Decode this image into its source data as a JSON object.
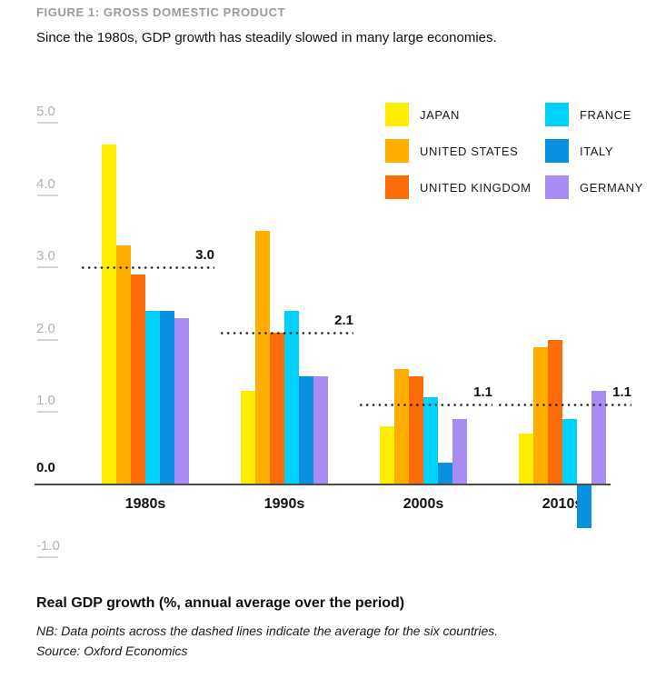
{
  "figure": {
    "kicker": "FIGURE 1: GROSS DOMESTIC PRODUCT",
    "subtitle": "Since the 1980s, GDP growth has steadily slowed in many large economies.",
    "footer_title": "Real GDP growth (%, annual average over the period)",
    "note": "NB: Data points across the dashed lines indicate the average for the six countries.",
    "source": "Source: Oxford Economics"
  },
  "chart_data": {
    "type": "bar",
    "title": "FIGURE 1: GROSS DOMESTIC PRODUCT",
    "subtitle": "Since the 1980s, GDP growth has steadily slowed in many large economies.",
    "ylabel": "Real GDP growth (%, annual average over the period)",
    "xlabel": "",
    "categories": [
      "1980s",
      "1990s",
      "2000s",
      "2010s"
    ],
    "series": [
      {
        "name": "JAPAN",
        "color": "#FFED00",
        "values": [
          4.7,
          1.3,
          0.8,
          0.7
        ]
      },
      {
        "name": "UNITED STATES",
        "color": "#FFAE00",
        "values": [
          3.3,
          3.5,
          1.6,
          1.9
        ]
      },
      {
        "name": "UNITED KINGDOM",
        "color": "#FB6B07",
        "values": [
          2.9,
          2.1,
          1.5,
          2.0
        ]
      },
      {
        "name": "FRANCE",
        "color": "#00D2FC",
        "values": [
          2.4,
          2.4,
          1.2,
          0.9
        ]
      },
      {
        "name": "ITALY",
        "color": "#0A90E0",
        "values": [
          2.4,
          1.5,
          0.3,
          -0.6
        ]
      },
      {
        "name": "GERMANY",
        "color": "#A98BF4",
        "values": [
          2.3,
          1.5,
          0.9,
          1.3
        ]
      }
    ],
    "averages": [
      {
        "category": "1980s",
        "value": 3.0,
        "label": "3.0"
      },
      {
        "category": "1990s",
        "value": 2.1,
        "label": "2.1"
      },
      {
        "category": "2000s",
        "value": 1.1,
        "label": "1.1"
      },
      {
        "category": "2010s",
        "value": 1.1,
        "label": "1.1"
      }
    ],
    "y_ticks": [
      {
        "label": "5.0",
        "value": 5.0
      },
      {
        "label": "4.0",
        "value": 4.0
      },
      {
        "label": "3.0",
        "value": 3.0
      },
      {
        "label": "2.0",
        "value": 2.0
      },
      {
        "label": "1.0",
        "value": 1.0
      },
      {
        "label": "0.0",
        "value": 0.0,
        "emphasis": true
      },
      {
        "label": "-1.0",
        "value": -1.0
      }
    ],
    "ylim": [
      -1.0,
      5.0
    ],
    "grid": false,
    "legend_position": "top-right",
    "average_line_style": "dotted"
  }
}
